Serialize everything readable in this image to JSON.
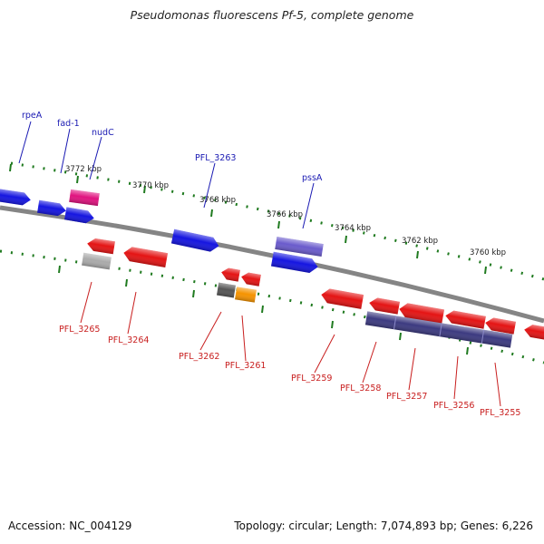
{
  "title": "Pseudomonas fluorescens Pf-5, complete genome",
  "footer": {
    "accession": "Accession: NC_004129",
    "summary": "Topology: circular; Length: 7,074,893 bp; Genes: 6,226"
  },
  "colors": {
    "backbone": "#858585",
    "tick": "#1f7a1f",
    "forward_label": "#1a1ab3",
    "reverse_label": "#c81e1e",
    "blue": "#1515e0",
    "red": "#e41414",
    "magenta": "#e0137f",
    "lavender": "#6a5bcc",
    "navy": "#3c3a80",
    "gray": "#aaaaaa",
    "darkgray": "#555555",
    "orange": "#f59300"
  },
  "kbp_labels": [
    "3772 kbp",
    "3770 kbp",
    "3768 kbp",
    "3766 kbp",
    "3764 kbp",
    "3762 kbp",
    "3760 kbp"
  ],
  "forward_labels": [
    "rpeA",
    "fad-1",
    "nudC",
    "PFL_3263",
    "pssA"
  ],
  "reverse_labels": [
    "PFL_3265",
    "PFL_3264",
    "PFL_3262",
    "PFL_3261",
    "PFL_3259",
    "PFL_3258",
    "PFL_3257",
    "PFL_3256",
    "PFL_3255"
  ]
}
